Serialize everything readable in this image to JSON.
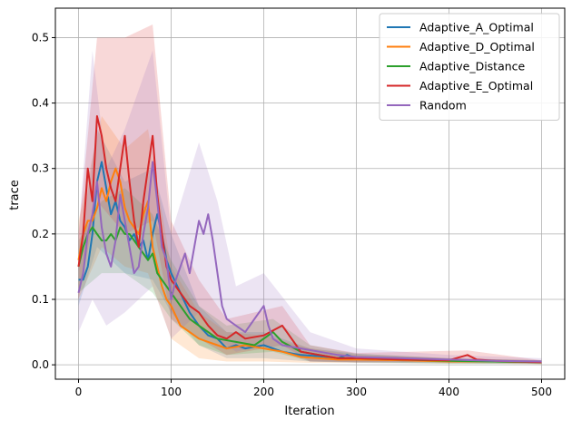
{
  "chart_data": {
    "type": "line",
    "title": "",
    "xlabel": "Iteration",
    "ylabel": "trace",
    "xlim": [
      -25,
      525
    ],
    "ylim": [
      -0.022,
      0.545
    ],
    "xticks": [
      0,
      100,
      200,
      300,
      400,
      500
    ],
    "xtick_labels": [
      "0",
      "100",
      "200",
      "300",
      "400",
      "500"
    ],
    "yticks": [
      0.0,
      0.1,
      0.2,
      0.3,
      0.4,
      0.5
    ],
    "ytick_labels": [
      "0.0",
      "0.1",
      "0.2",
      "0.3",
      "0.4",
      "0.5"
    ],
    "grid": true,
    "legend_position": "top-right",
    "shaded_band": "variability range around each series",
    "series": [
      {
        "name": "Adaptive_A_Optimal",
        "color": "#1f77b4",
        "points": [
          [
            0,
            0.13
          ],
          [
            5,
            0.13
          ],
          [
            10,
            0.15
          ],
          [
            15,
            0.2
          ],
          [
            20,
            0.28
          ],
          [
            25,
            0.31
          ],
          [
            30,
            0.27
          ],
          [
            35,
            0.23
          ],
          [
            40,
            0.25
          ],
          [
            45,
            0.22
          ],
          [
            50,
            0.21
          ],
          [
            55,
            0.19
          ],
          [
            60,
            0.2
          ],
          [
            65,
            0.18
          ],
          [
            70,
            0.19
          ],
          [
            75,
            0.16
          ],
          [
            80,
            0.2
          ],
          [
            85,
            0.23
          ],
          [
            90,
            0.2
          ],
          [
            95,
            0.16
          ],
          [
            100,
            0.14
          ],
          [
            110,
            0.11
          ],
          [
            120,
            0.08
          ],
          [
            130,
            0.06
          ],
          [
            140,
            0.045
          ],
          [
            150,
            0.04
          ],
          [
            160,
            0.025
          ],
          [
            170,
            0.03
          ],
          [
            180,
            0.025
          ],
          [
            200,
            0.03
          ],
          [
            220,
            0.02
          ],
          [
            240,
            0.015
          ],
          [
            260,
            0.013
          ],
          [
            280,
            0.01
          ],
          [
            290,
            0.015
          ],
          [
            300,
            0.01
          ],
          [
            320,
            0.008
          ],
          [
            350,
            0.007
          ],
          [
            400,
            0.006
          ],
          [
            450,
            0.005
          ],
          [
            500,
            0.004
          ]
        ],
        "band": [
          [
            0,
            0.09,
            0.17
          ],
          [
            20,
            0.18,
            0.36
          ],
          [
            50,
            0.14,
            0.28
          ],
          [
            80,
            0.13,
            0.3
          ],
          [
            100,
            0.08,
            0.2
          ],
          [
            130,
            0.03,
            0.09
          ],
          [
            160,
            0.01,
            0.05
          ],
          [
            200,
            0.01,
            0.05
          ],
          [
            250,
            0.005,
            0.025
          ],
          [
            300,
            0.003,
            0.017
          ],
          [
            400,
            0.002,
            0.01
          ],
          [
            500,
            0.002,
            0.007
          ]
        ]
      },
      {
        "name": "Adaptive_D_Optimal",
        "color": "#ff7f0e",
        "points": [
          [
            0,
            0.16
          ],
          [
            5,
            0.2
          ],
          [
            10,
            0.22
          ],
          [
            15,
            0.22
          ],
          [
            20,
            0.24
          ],
          [
            25,
            0.27
          ],
          [
            30,
            0.25
          ],
          [
            35,
            0.28
          ],
          [
            40,
            0.3
          ],
          [
            45,
            0.28
          ],
          [
            50,
            0.24
          ],
          [
            55,
            0.22
          ],
          [
            60,
            0.21
          ],
          [
            65,
            0.2
          ],
          [
            70,
            0.23
          ],
          [
            75,
            0.25
          ],
          [
            80,
            0.18
          ],
          [
            85,
            0.15
          ],
          [
            90,
            0.12
          ],
          [
            95,
            0.1
          ],
          [
            100,
            0.09
          ],
          [
            110,
            0.06
          ],
          [
            120,
            0.05
          ],
          [
            130,
            0.04
          ],
          [
            140,
            0.035
          ],
          [
            150,
            0.03
          ],
          [
            160,
            0.025
          ],
          [
            180,
            0.03
          ],
          [
            200,
            0.025
          ],
          [
            220,
            0.02
          ],
          [
            240,
            0.012
          ],
          [
            260,
            0.01
          ],
          [
            280,
            0.008
          ],
          [
            300,
            0.008
          ],
          [
            350,
            0.007
          ],
          [
            400,
            0.005
          ],
          [
            450,
            0.005
          ],
          [
            500,
            0.004
          ]
        ],
        "band": [
          [
            0,
            0.1,
            0.22
          ],
          [
            25,
            0.18,
            0.38
          ],
          [
            50,
            0.15,
            0.33
          ],
          [
            75,
            0.14,
            0.36
          ],
          [
            100,
            0.04,
            0.15
          ],
          [
            130,
            0.01,
            0.08
          ],
          [
            160,
            0.005,
            0.05
          ],
          [
            200,
            0.005,
            0.045
          ],
          [
            250,
            0.003,
            0.025
          ],
          [
            300,
            0.003,
            0.015
          ],
          [
            400,
            0.002,
            0.01
          ],
          [
            500,
            0.001,
            0.007
          ]
        ]
      },
      {
        "name": "Adaptive_Distance",
        "color": "#2ca02c",
        "points": [
          [
            0,
            0.15
          ],
          [
            5,
            0.18
          ],
          [
            10,
            0.2
          ],
          [
            15,
            0.21
          ],
          [
            20,
            0.2
          ],
          [
            25,
            0.19
          ],
          [
            30,
            0.19
          ],
          [
            35,
            0.2
          ],
          [
            40,
            0.19
          ],
          [
            45,
            0.21
          ],
          [
            50,
            0.2
          ],
          [
            55,
            0.2
          ],
          [
            60,
            0.19
          ],
          [
            65,
            0.18
          ],
          [
            70,
            0.17
          ],
          [
            75,
            0.16
          ],
          [
            80,
            0.17
          ],
          [
            85,
            0.14
          ],
          [
            90,
            0.13
          ],
          [
            95,
            0.12
          ],
          [
            100,
            0.11
          ],
          [
            110,
            0.09
          ],
          [
            120,
            0.07
          ],
          [
            130,
            0.06
          ],
          [
            140,
            0.05
          ],
          [
            150,
            0.04
          ],
          [
            170,
            0.035
          ],
          [
            190,
            0.03
          ],
          [
            200,
            0.04
          ],
          [
            210,
            0.05
          ],
          [
            220,
            0.035
          ],
          [
            240,
            0.02
          ],
          [
            260,
            0.015
          ],
          [
            280,
            0.01
          ],
          [
            300,
            0.01
          ],
          [
            350,
            0.008
          ],
          [
            400,
            0.006
          ],
          [
            450,
            0.005
          ],
          [
            500,
            0.004
          ]
        ],
        "band": [
          [
            0,
            0.11,
            0.19
          ],
          [
            25,
            0.14,
            0.25
          ],
          [
            50,
            0.14,
            0.27
          ],
          [
            80,
            0.11,
            0.23
          ],
          [
            100,
            0.07,
            0.16
          ],
          [
            130,
            0.03,
            0.09
          ],
          [
            160,
            0.015,
            0.06
          ],
          [
            210,
            0.02,
            0.07
          ],
          [
            250,
            0.005,
            0.03
          ],
          [
            300,
            0.004,
            0.017
          ],
          [
            400,
            0.002,
            0.01
          ],
          [
            500,
            0.001,
            0.007
          ]
        ]
      },
      {
        "name": "Adaptive_E_Optimal",
        "color": "#d62728",
        "points": [
          [
            0,
            0.15
          ],
          [
            5,
            0.2
          ],
          [
            10,
            0.3
          ],
          [
            15,
            0.25
          ],
          [
            20,
            0.38
          ],
          [
            25,
            0.35
          ],
          [
            30,
            0.3
          ],
          [
            35,
            0.27
          ],
          [
            40,
            0.25
          ],
          [
            45,
            0.3
          ],
          [
            50,
            0.35
          ],
          [
            55,
            0.28
          ],
          [
            60,
            0.22
          ],
          [
            65,
            0.18
          ],
          [
            70,
            0.25
          ],
          [
            75,
            0.3
          ],
          [
            80,
            0.35
          ],
          [
            85,
            0.26
          ],
          [
            90,
            0.2
          ],
          [
            95,
            0.15
          ],
          [
            100,
            0.13
          ],
          [
            110,
            0.11
          ],
          [
            120,
            0.09
          ],
          [
            130,
            0.08
          ],
          [
            140,
            0.06
          ],
          [
            150,
            0.045
          ],
          [
            160,
            0.04
          ],
          [
            170,
            0.05
          ],
          [
            180,
            0.04
          ],
          [
            200,
            0.045
          ],
          [
            220,
            0.06
          ],
          [
            230,
            0.04
          ],
          [
            240,
            0.02
          ],
          [
            260,
            0.015
          ],
          [
            280,
            0.01
          ],
          [
            300,
            0.01
          ],
          [
            350,
            0.008
          ],
          [
            400,
            0.007
          ],
          [
            420,
            0.015
          ],
          [
            430,
            0.008
          ],
          [
            450,
            0.006
          ],
          [
            500,
            0.004
          ]
        ],
        "band": [
          [
            0,
            0.1,
            0.2
          ],
          [
            20,
            0.25,
            0.5
          ],
          [
            50,
            0.2,
            0.5
          ],
          [
            80,
            0.22,
            0.52
          ],
          [
            100,
            0.07,
            0.22
          ],
          [
            130,
            0.04,
            0.13
          ],
          [
            160,
            0.015,
            0.07
          ],
          [
            220,
            0.03,
            0.09
          ],
          [
            250,
            0.005,
            0.03
          ],
          [
            300,
            0.004,
            0.018
          ],
          [
            420,
            0.005,
            0.022
          ],
          [
            500,
            0.001,
            0.007
          ]
        ]
      },
      {
        "name": "Random",
        "color": "#9467bd",
        "points": [
          [
            0,
            0.11
          ],
          [
            5,
            0.14
          ],
          [
            10,
            0.2
          ],
          [
            15,
            0.23
          ],
          [
            20,
            0.28
          ],
          [
            25,
            0.21
          ],
          [
            30,
            0.17
          ],
          [
            35,
            0.15
          ],
          [
            40,
            0.19
          ],
          [
            45,
            0.26
          ],
          [
            50,
            0.22
          ],
          [
            55,
            0.18
          ],
          [
            60,
            0.14
          ],
          [
            65,
            0.15
          ],
          [
            70,
            0.2
          ],
          [
            75,
            0.24
          ],
          [
            80,
            0.31
          ],
          [
            85,
            0.25
          ],
          [
            90,
            0.18
          ],
          [
            95,
            0.16
          ],
          [
            100,
            0.1
          ],
          [
            105,
            0.13
          ],
          [
            110,
            0.15
          ],
          [
            115,
            0.17
          ],
          [
            120,
            0.14
          ],
          [
            125,
            0.18
          ],
          [
            130,
            0.22
          ],
          [
            135,
            0.2
          ],
          [
            140,
            0.23
          ],
          [
            145,
            0.19
          ],
          [
            150,
            0.14
          ],
          [
            155,
            0.09
          ],
          [
            160,
            0.07
          ],
          [
            170,
            0.06
          ],
          [
            180,
            0.05
          ],
          [
            190,
            0.07
          ],
          [
            200,
            0.09
          ],
          [
            205,
            0.06
          ],
          [
            210,
            0.04
          ],
          [
            220,
            0.03
          ],
          [
            240,
            0.025
          ],
          [
            260,
            0.02
          ],
          [
            280,
            0.015
          ],
          [
            300,
            0.012
          ],
          [
            350,
            0.01
          ],
          [
            400,
            0.008
          ],
          [
            450,
            0.006
          ],
          [
            500,
            0.005
          ]
        ],
        "band": [
          [
            0,
            0.05,
            0.2
          ],
          [
            15,
            0.1,
            0.48
          ],
          [
            30,
            0.06,
            0.3
          ],
          [
            50,
            0.08,
            0.36
          ],
          [
            80,
            0.12,
            0.48
          ],
          [
            100,
            0.04,
            0.2
          ],
          [
            130,
            0.08,
            0.34
          ],
          [
            150,
            0.04,
            0.25
          ],
          [
            170,
            0.02,
            0.12
          ],
          [
            200,
            0.03,
            0.14
          ],
          [
            250,
            0.005,
            0.05
          ],
          [
            300,
            0.004,
            0.025
          ],
          [
            400,
            0.003,
            0.015
          ],
          [
            500,
            0.002,
            0.01
          ]
        ]
      }
    ]
  }
}
